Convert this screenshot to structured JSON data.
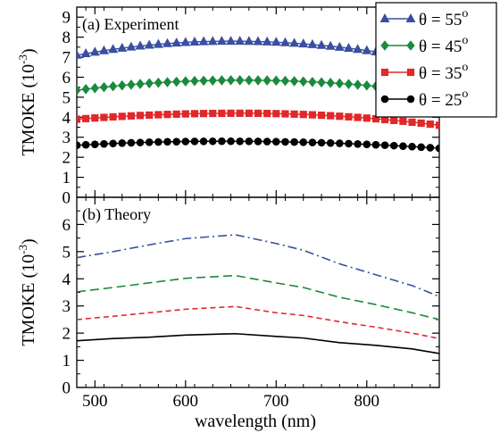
{
  "chart_data": [
    {
      "type": "line",
      "panel_label": "(a) Experiment",
      "xlabel": "wavelength (nm)",
      "ylabel": "TMOKE (10",
      "ylabel_exp": "-3",
      "ylabel_close": ")",
      "xlim": [
        480,
        880
      ],
      "ylim": [
        0,
        9.5
      ],
      "xticks": [
        500,
        600,
        700,
        800
      ],
      "yticks": [
        0,
        1,
        2,
        3,
        4,
        5,
        6,
        7,
        8,
        9
      ],
      "legend": {
        "position": "top-right"
      },
      "x_start": 480,
      "x_end": 880,
      "x_step": 10,
      "series": [
        {
          "name": "θ = 55",
          "name_sup": "o",
          "color": "#3a4fa0",
          "marker": "triangle",
          "peak": 7.8,
          "peak_x": 650,
          "start": 7.1,
          "end": 6.7
        },
        {
          "name": "θ = 45",
          "name_sup": "o",
          "color": "#1a8a3c",
          "marker": "diamond",
          "peak": 5.85,
          "peak_x": 660,
          "start": 5.35,
          "end": 5.2
        },
        {
          "name": "θ = 35",
          "name_sup": "o",
          "color": "#e0282a",
          "marker": "square",
          "peak": 4.2,
          "peak_x": 660,
          "start": 3.9,
          "end": 3.6
        },
        {
          "name": "θ = 25",
          "name_sup": "o",
          "color": "#000000",
          "marker": "circle",
          "peak": 2.8,
          "peak_x": 640,
          "start": 2.6,
          "end": 2.45
        }
      ]
    },
    {
      "type": "line",
      "panel_label": "(b) Theory",
      "xlabel": "wavelength (nm)",
      "ylabel": "TMOKE (10",
      "ylabel_exp": "-3",
      "ylabel_close": ")",
      "xlim": [
        480,
        880
      ],
      "ylim": [
        0,
        7
      ],
      "xticks": [
        500,
        600,
        700,
        800
      ],
      "yticks": [
        0,
        1,
        2,
        3,
        4,
        5,
        6
      ],
      "series": [
        {
          "color": "#3a4fa0",
          "dash": "dashdot",
          "x": [
            480,
            520,
            560,
            600,
            655,
            700,
            730,
            770,
            810,
            850,
            880
          ],
          "y": [
            4.78,
            5.0,
            5.25,
            5.48,
            5.62,
            5.3,
            5.05,
            4.55,
            4.15,
            3.75,
            3.35
          ]
        },
        {
          "color": "#1a8a3c",
          "dash": "longdash",
          "x": [
            480,
            520,
            560,
            600,
            655,
            700,
            730,
            770,
            810,
            850,
            880
          ],
          "y": [
            3.52,
            3.68,
            3.85,
            4.02,
            4.12,
            3.85,
            3.68,
            3.32,
            3.05,
            2.75,
            2.5
          ]
        },
        {
          "color": "#e0282a",
          "dash": "shortdash",
          "x": [
            480,
            520,
            560,
            600,
            655,
            700,
            730,
            770,
            810,
            850,
            880
          ],
          "y": [
            2.5,
            2.62,
            2.75,
            2.88,
            2.98,
            2.75,
            2.65,
            2.42,
            2.22,
            2.0,
            1.8
          ]
        },
        {
          "color": "#000000",
          "dash": "solid",
          "x": [
            480,
            520,
            560,
            600,
            655,
            700,
            730,
            770,
            810,
            850,
            880
          ],
          "y": [
            1.72,
            1.8,
            1.85,
            1.93,
            1.98,
            1.88,
            1.82,
            1.65,
            1.55,
            1.42,
            1.25
          ]
        }
      ]
    }
  ]
}
